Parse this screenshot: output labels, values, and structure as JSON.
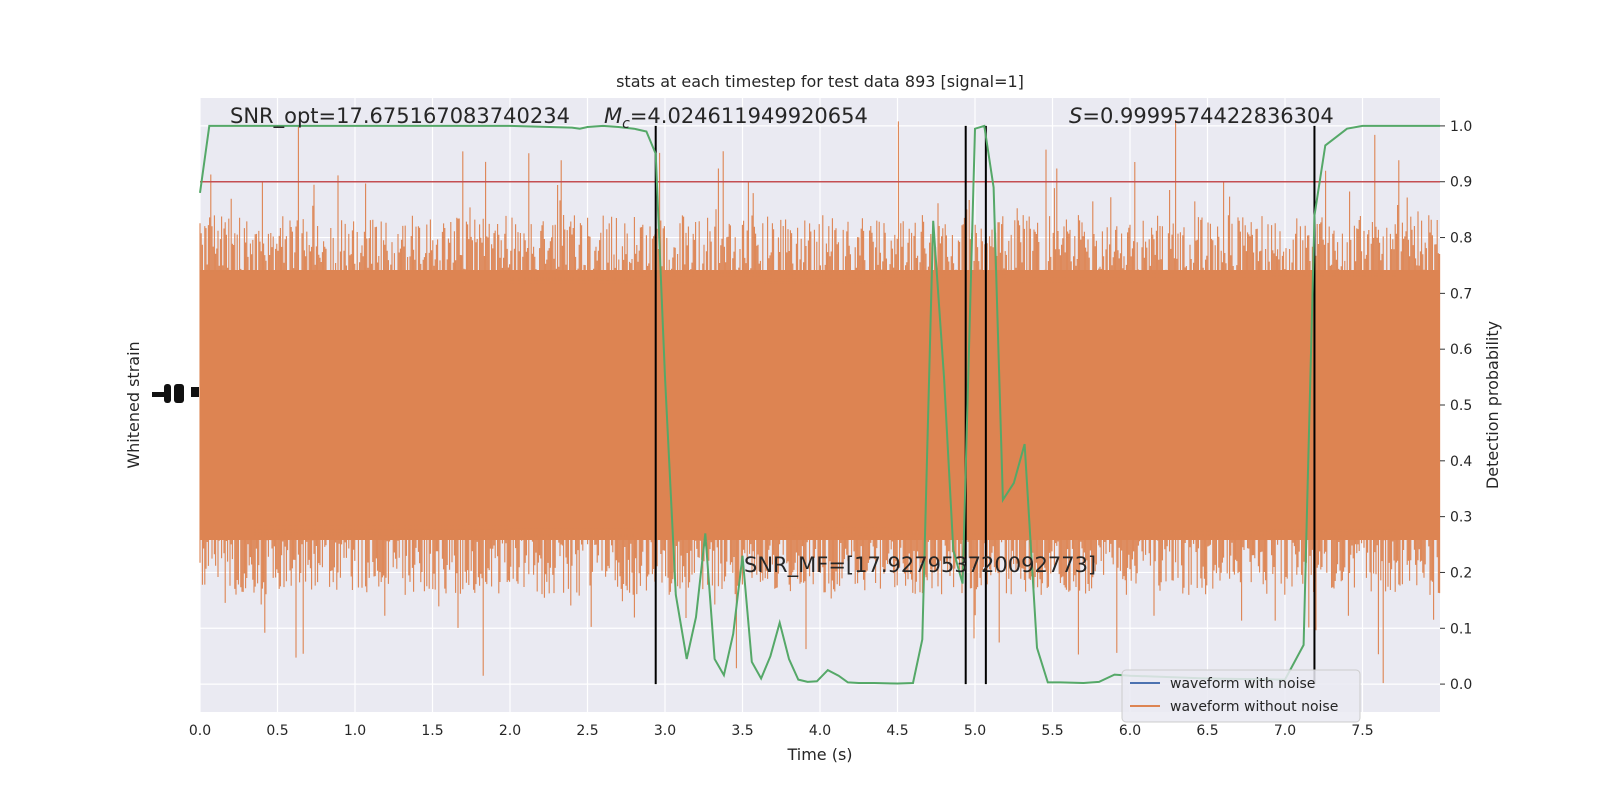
{
  "chart_data": {
    "type": "line",
    "title": "stats at each timestep for test data 893 [signal=1]",
    "xlabel": "Time (s)",
    "ylabel_left": "Whitened strain",
    "ylabel_right": "Detection probability",
    "xlim": [
      0,
      8.0
    ],
    "ylim_right": [
      -0.05,
      1.05
    ],
    "x_ticks": [
      "0.0",
      "0.5",
      "1.0",
      "1.5",
      "2.0",
      "2.5",
      "3.0",
      "3.5",
      "4.0",
      "4.5",
      "5.0",
      "5.5",
      "6.0",
      "6.5",
      "7.0",
      "7.5"
    ],
    "x_tick_values": [
      0,
      0.5,
      1.0,
      1.5,
      2.0,
      2.5,
      3.0,
      3.5,
      4.0,
      4.5,
      5.0,
      5.5,
      6.0,
      6.5,
      7.0,
      7.5
    ],
    "y_right_ticks": [
      "0.0",
      "0.1",
      "0.2",
      "0.3",
      "0.4",
      "0.5",
      "0.6",
      "0.7",
      "0.8",
      "0.9",
      "1.0"
    ],
    "y_right_tick_values": [
      0,
      0.1,
      0.2,
      0.3,
      0.4,
      0.5,
      0.6,
      0.7,
      0.8,
      0.9,
      1.0
    ],
    "threshold": 0.9,
    "vlines": [
      2.94,
      4.94,
      5.07,
      7.19
    ],
    "annotations": {
      "snr_opt": "SNR_opt=17.675167083740234",
      "mc_prefix": "M",
      "mc_sub": "c",
      "mc_value": "=4.024611949920654",
      "s_symbol": "S",
      "s_value": "=0.9999574422836304",
      "snr_mf": "SNR_MF=[17.927953720092773]"
    },
    "legend": [
      {
        "label": "waveform with noise",
        "color": "#4c72b0"
      },
      {
        "label": "waveform without noise",
        "color": "#dd8452"
      }
    ],
    "series": [
      {
        "name": "detection probability",
        "color": "#55a868",
        "x": [
          0.0,
          0.06,
          0.2,
          0.5,
          1.0,
          1.5,
          2.0,
          2.4,
          2.45,
          2.5,
          2.6,
          2.7,
          2.8,
          2.88,
          2.94,
          3.0,
          3.07,
          3.14,
          3.2,
          3.26,
          3.32,
          3.38,
          3.44,
          3.5,
          3.56,
          3.62,
          3.68,
          3.74,
          3.8,
          3.86,
          3.92,
          3.98,
          4.05,
          4.12,
          4.18,
          4.25,
          4.35,
          4.5,
          4.6,
          4.66,
          4.73,
          4.8,
          4.86,
          4.92,
          5.0,
          5.06,
          5.12,
          5.18,
          5.25,
          5.32,
          5.4,
          5.47,
          5.55,
          5.7,
          5.8,
          5.9,
          6.0,
          6.5,
          7.0,
          7.12,
          7.19,
          7.26,
          7.33,
          7.4,
          7.5,
          8.0
        ],
        "y": [
          0.88,
          1.0,
          1.0,
          1.0,
          1.0,
          1.0,
          1.0,
          0.997,
          0.995,
          0.998,
          1.0,
          0.998,
          0.995,
          0.99,
          0.95,
          0.55,
          0.16,
          0.045,
          0.12,
          0.27,
          0.045,
          0.016,
          0.09,
          0.23,
          0.04,
          0.01,
          0.05,
          0.11,
          0.045,
          0.008,
          0.004,
          0.005,
          0.025,
          0.015,
          0.003,
          0.002,
          0.002,
          0.001,
          0.002,
          0.08,
          0.83,
          0.55,
          0.24,
          0.18,
          0.995,
          1.0,
          0.89,
          0.33,
          0.36,
          0.43,
          0.065,
          0.003,
          0.003,
          0.002,
          0.004,
          0.017,
          0.015,
          0.01,
          0.008,
          0.07,
          0.84,
          0.965,
          0.98,
          0.995,
          1.0,
          1.0
        ]
      }
    ]
  }
}
